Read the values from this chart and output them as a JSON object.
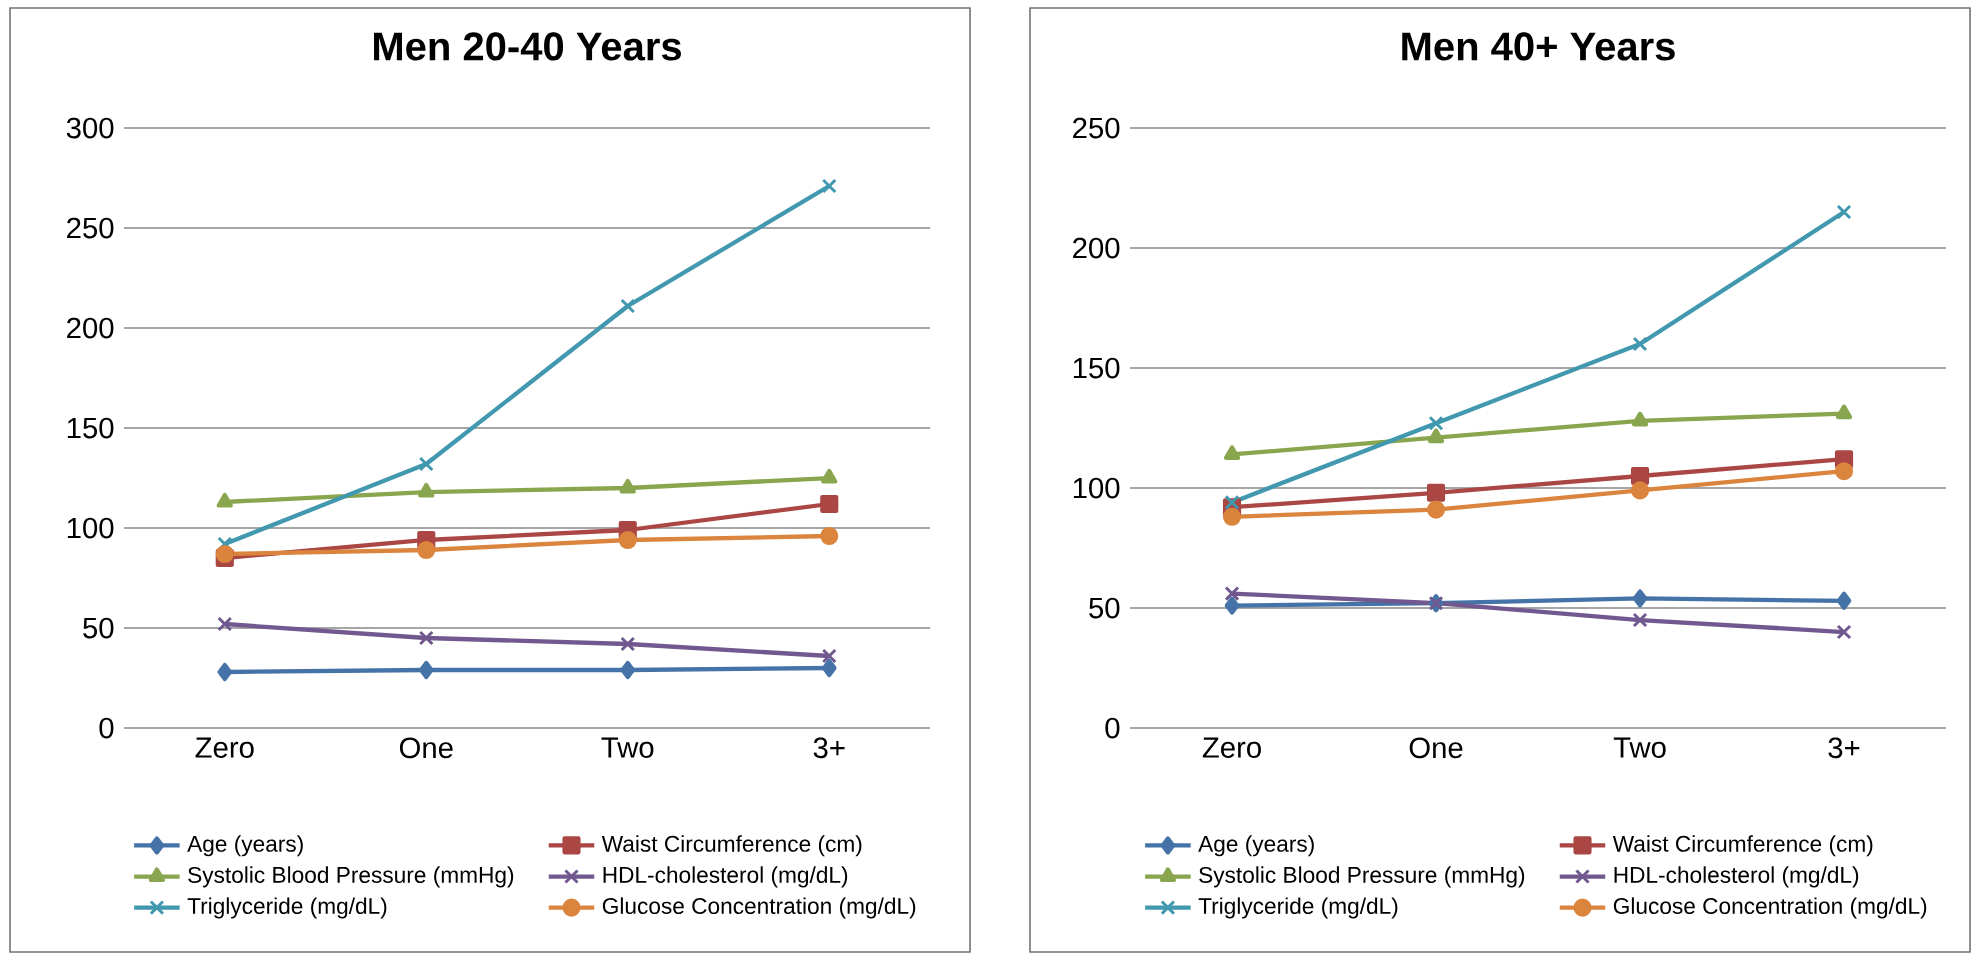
{
  "chart_data": [
    {
      "type": "line",
      "title": "Men 20-40 Years",
      "categories": [
        "Zero",
        "One",
        "Two",
        "3+"
      ],
      "ylim": [
        0,
        300
      ],
      "yticks": [
        0,
        50,
        100,
        150,
        200,
        250,
        300
      ],
      "grid": "y",
      "legend": "bottom",
      "series": [
        {
          "name": "Age (years)",
          "color": "#4572a7",
          "marker": "diamond",
          "values": [
            28,
            29,
            29,
            30
          ]
        },
        {
          "name": "Waist Circumference (cm)",
          "color": "#aa4643",
          "marker": "square",
          "values": [
            85,
            94,
            99,
            112
          ]
        },
        {
          "name": "Systolic Blood Pressure (mmHg)",
          "color": "#89a54e",
          "marker": "triangle",
          "values": [
            113,
            118,
            120,
            125
          ]
        },
        {
          "name": "HDL-cholesterol (mg/dL)",
          "color": "#71588f",
          "marker": "cross",
          "values": [
            52,
            45,
            42,
            36
          ]
        },
        {
          "name": "Triglyceride (mg/dL)",
          "color": "#4198af",
          "marker": "cross",
          "values": [
            92,
            132,
            211,
            271
          ]
        },
        {
          "name": "Glucose Concentration (mg/dL)",
          "color": "#db843d",
          "marker": "circle",
          "values": [
            87,
            89,
            94,
            96
          ]
        }
      ]
    },
    {
      "type": "line",
      "title": "Men 40+ Years",
      "categories": [
        "Zero",
        "One",
        "Two",
        "3+"
      ],
      "ylim": [
        0,
        250
      ],
      "yticks": [
        0,
        50,
        100,
        150,
        200,
        250
      ],
      "grid": "y",
      "legend": "bottom",
      "series": [
        {
          "name": "Age (years)",
          "color": "#4572a7",
          "marker": "diamond",
          "values": [
            51,
            52,
            54,
            53
          ]
        },
        {
          "name": "Waist Circumference (cm)",
          "color": "#aa4643",
          "marker": "square",
          "values": [
            92,
            98,
            105,
            112
          ]
        },
        {
          "name": "Systolic Blood Pressure (mmHg)",
          "color": "#89a54e",
          "marker": "triangle",
          "values": [
            114,
            121,
            128,
            131
          ]
        },
        {
          "name": "HDL-cholesterol (mg/dL)",
          "color": "#71588f",
          "marker": "cross",
          "values": [
            56,
            52,
            45,
            40
          ]
        },
        {
          "name": "Triglyceride (mg/dL)",
          "color": "#4198af",
          "marker": "cross",
          "values": [
            94,
            127,
            160,
            215
          ]
        },
        {
          "name": "Glucose Concentration (mg/dL)",
          "color": "#db843d",
          "marker": "circle",
          "values": [
            88,
            91,
            99,
            107
          ]
        }
      ]
    }
  ]
}
